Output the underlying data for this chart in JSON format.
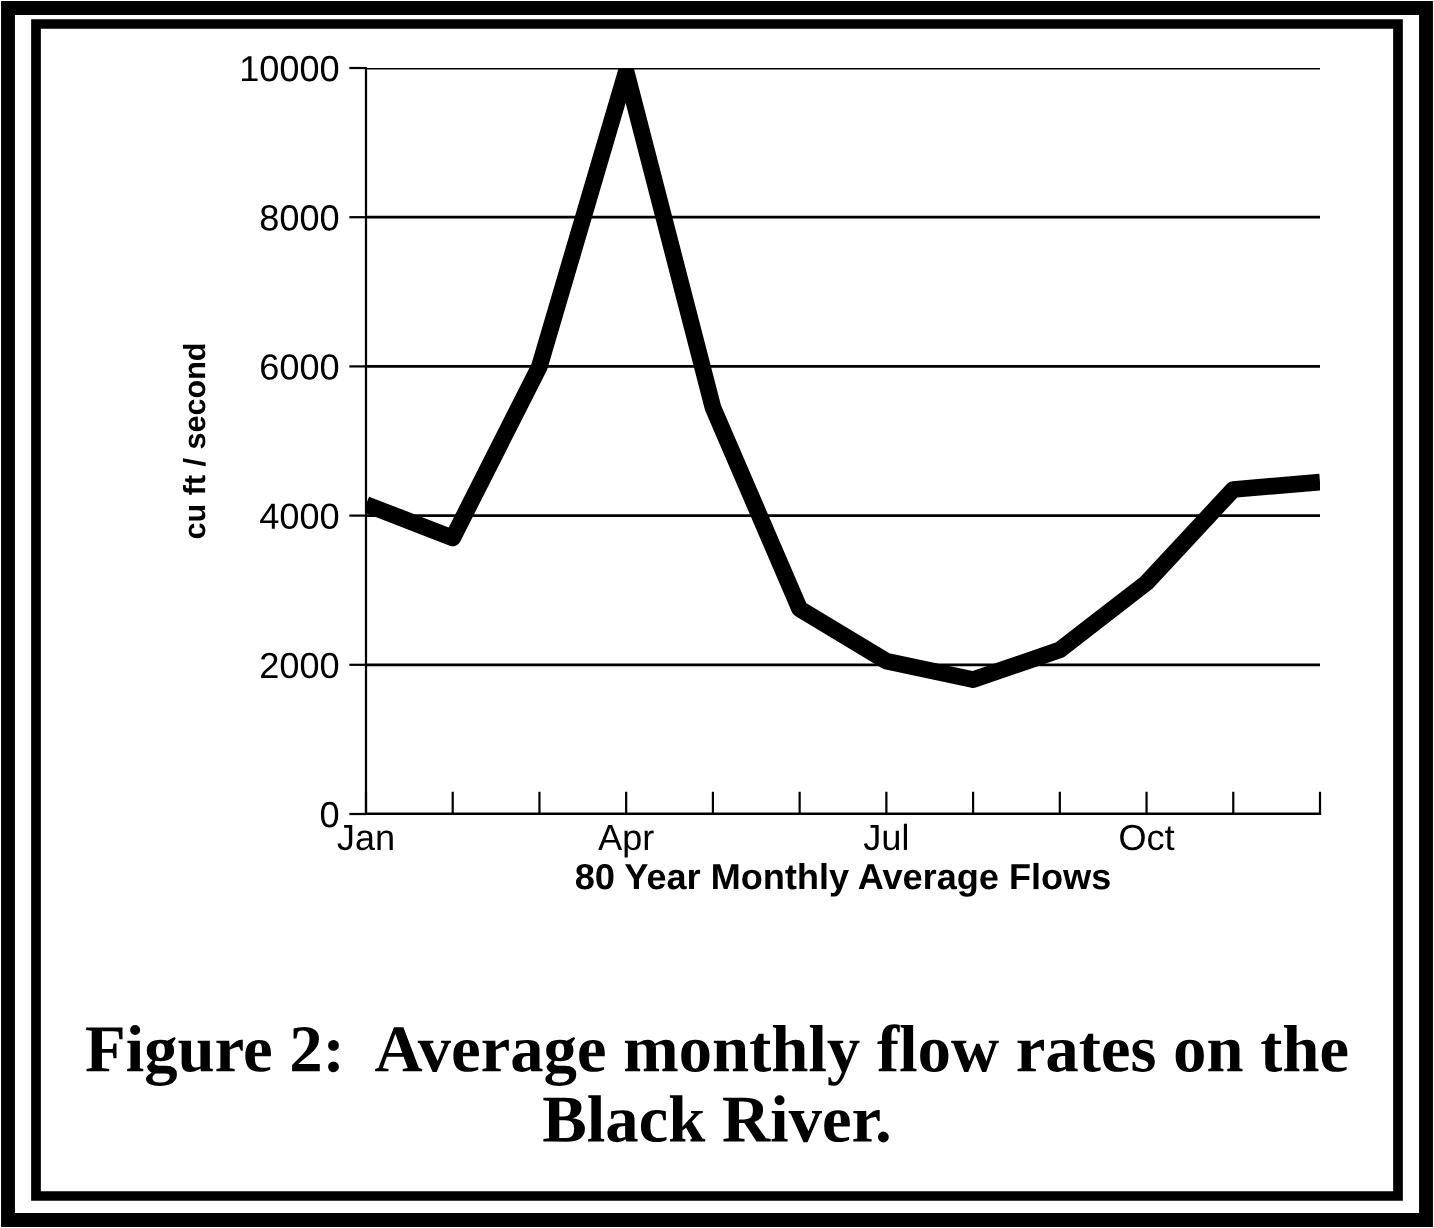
{
  "chart_data": {
    "type": "line",
    "categories": [
      "Jan",
      null,
      null,
      "Apr",
      null,
      null,
      "Jul",
      null,
      null,
      "Oct",
      null,
      null
    ],
    "values": [
      4150,
      3700,
      6000,
      9950,
      5450,
      2750,
      2050,
      1800,
      2200,
      3100,
      4350,
      4450
    ],
    "color": "#000000",
    "xlabel": "80 Year Monthly Average Flows",
    "ylabel": "cu ft / second",
    "ylim": [
      0,
      10000
    ],
    "yticks": [
      0,
      2000,
      4000,
      6000,
      8000,
      10000
    ],
    "grid": "y",
    "legend": false,
    "marker": "none",
    "line_style": "solid",
    "annotations": [
      "Figure 2:  Average monthly flow rates on the Black River."
    ]
  }
}
